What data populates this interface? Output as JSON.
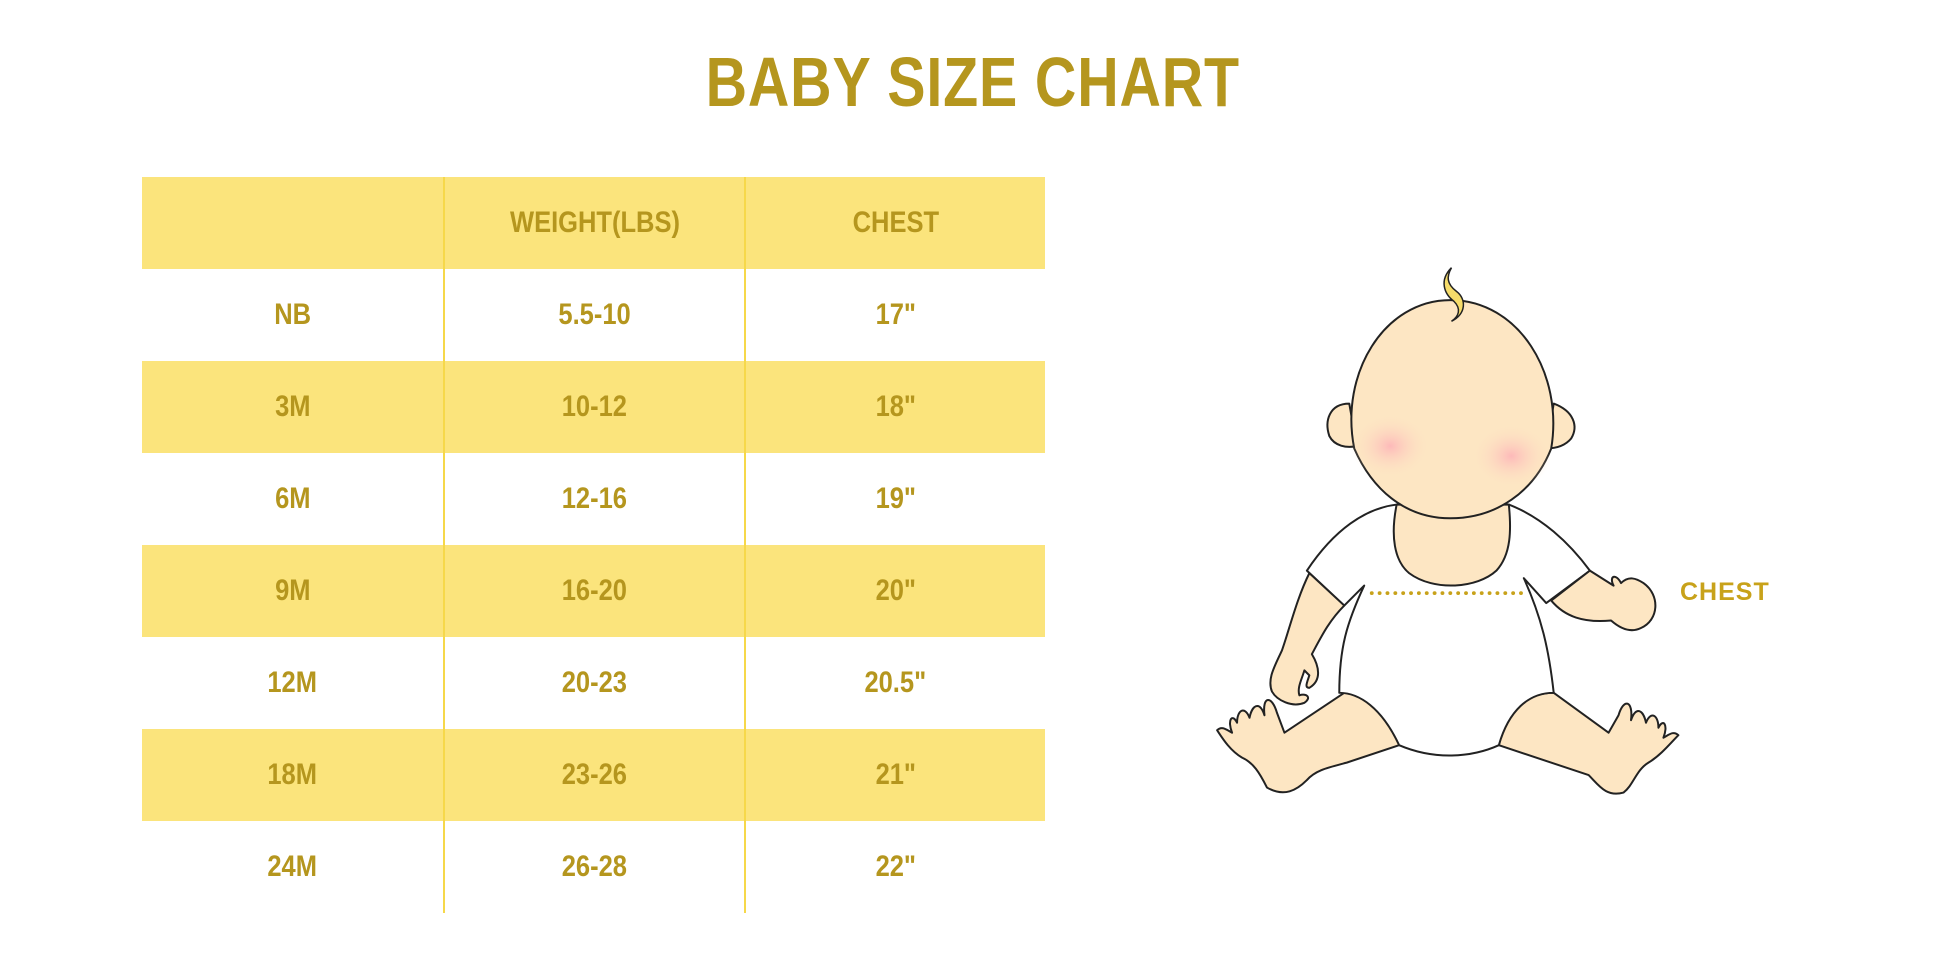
{
  "title": "BABY SIZE CHART",
  "table": {
    "headers": [
      "",
      "WEIGHT(LBS)",
      "CHEST"
    ],
    "rows": [
      [
        "NB",
        "5.5-10",
        "17\""
      ],
      [
        "3M",
        "10-12",
        "18\""
      ],
      [
        "6M",
        "12-16",
        "19\""
      ],
      [
        "9M",
        "16-20",
        "20\""
      ],
      [
        "12M",
        "20-23",
        "20.5\""
      ],
      [
        "18M",
        "23-26",
        "21\""
      ],
      [
        "24M",
        "26-28",
        "22\""
      ]
    ]
  },
  "illustration": {
    "measurement_label": "CHEST"
  },
  "colors": {
    "text_gold": "#b5961e",
    "stripe_yellow": "#fbe47c",
    "skin": "#fde6c3",
    "measure_line": "#c8a21a"
  }
}
